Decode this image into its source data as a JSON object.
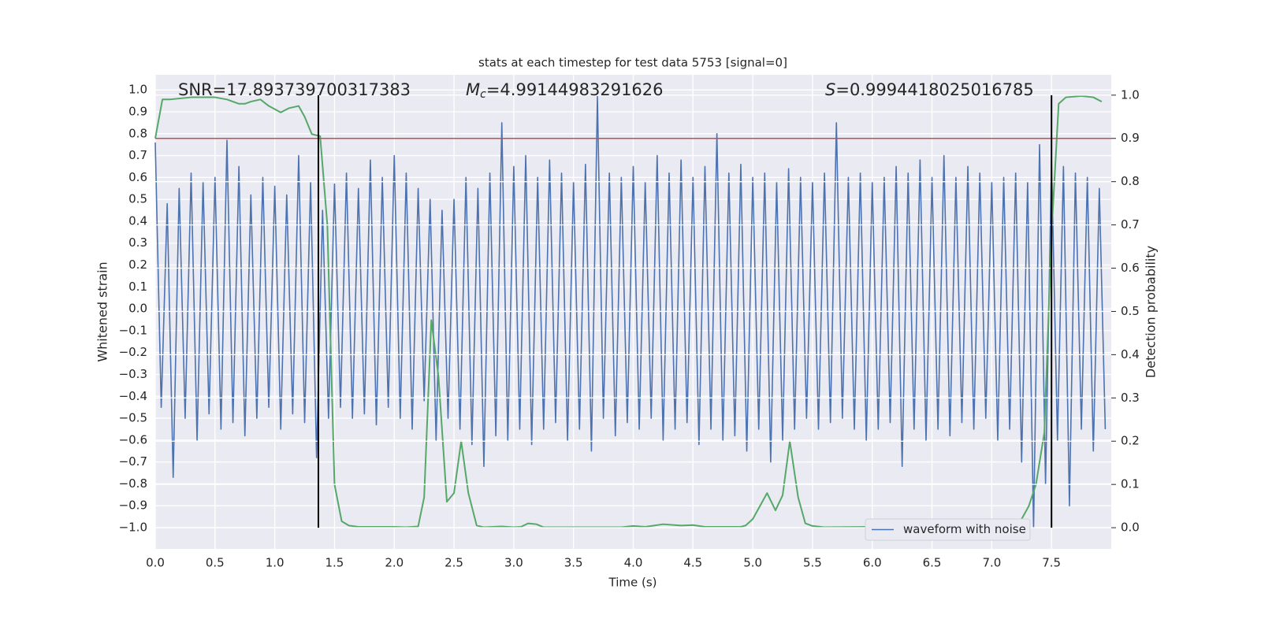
{
  "chart_data": {
    "type": "line",
    "title": "stats at each timestep for test data 5753 [signal=0]",
    "xlabel": "Time (s)",
    "ylabel": "Whitened strain",
    "y2label": "Detection probability",
    "xlim": [
      0,
      8
    ],
    "ylim": [
      -1.097,
      1.069
    ],
    "y2lim": [
      -0.049,
      1.047
    ],
    "xticks": [
      {
        "value": 0,
        "label": "0.0"
      },
      0.5,
      {
        "value": 1,
        "label": "1.0"
      },
      1.5,
      {
        "value": 2,
        "label": "2.0"
      },
      2.5,
      {
        "value": 3,
        "label": "3.0"
      },
      3.5,
      {
        "value": 4,
        "label": "4.0"
      },
      4.5,
      {
        "value": 5,
        "label": "5.0"
      },
      5.5,
      {
        "value": 6,
        "label": "6.0"
      },
      6.5,
      {
        "value": 7,
        "label": "7.0"
      },
      7.5
    ],
    "yticks": [
      {
        "value": -1,
        "label": "−1.0"
      },
      {
        "value": -0.9,
        "label": "−0.9"
      },
      {
        "value": -0.8,
        "label": "−0.8"
      },
      {
        "value": -0.7,
        "label": "−0.7"
      },
      {
        "value": -0.6,
        "label": "−0.6"
      },
      {
        "value": -0.5,
        "label": "−0.5"
      },
      {
        "value": -0.4,
        "label": "−0.4"
      },
      {
        "value": -0.3,
        "label": "−0.3"
      },
      {
        "value": -0.2,
        "label": "−0.2"
      },
      {
        "value": -0.1,
        "label": "−0.1"
      },
      {
        "value": 0,
        "label": "0.0"
      },
      0.1,
      0.2,
      0.3,
      0.4,
      0.5,
      0.6,
      0.7,
      0.8,
      0.9,
      {
        "value": 1,
        "label": "1.0"
      }
    ],
    "y2ticks": [
      {
        "value": 0,
        "label": "0.0"
      },
      0.1,
      0.2,
      0.3,
      0.4,
      0.5,
      0.6,
      0.7,
      0.8,
      0.9,
      {
        "value": 1,
        "label": "1.0"
      }
    ],
    "grid": true,
    "legend": "lower right",
    "threshold": {
      "y2": 0.9,
      "color": "#c44e52"
    },
    "vlines": {
      "x": [
        1.365,
        7.5
      ],
      "y2": [
        0,
        1
      ],
      "color": "#000000"
    },
    "annotations": [
      {
        "text": "SNR=17.893739700317383"
      },
      {
        "symbol": "M",
        "sub": "c",
        "text": "=4.99144983291626"
      },
      {
        "symbol": "S",
        "text": "=0.9994418025016785"
      }
    ],
    "series": [
      {
        "name": "waveform with noise",
        "color": "#4c72b0",
        "x": [
          0,
          0.05,
          0.1,
          0.15,
          0.2,
          0.25,
          0.3,
          0.35,
          0.4,
          0.45,
          0.5,
          0.55,
          0.6,
          0.65,
          0.7,
          0.75,
          0.8,
          0.85,
          0.9,
          0.95,
          1,
          1.05,
          1.1,
          1.15,
          1.2,
          1.25,
          1.3,
          1.35,
          1.4,
          1.45,
          1.5,
          1.55,
          1.6,
          1.65,
          1.7,
          1.75,
          1.8,
          1.85,
          1.9,
          1.95,
          2,
          2.05,
          2.1,
          2.15,
          2.2,
          2.25,
          2.3,
          2.35,
          2.4,
          2.45,
          2.5,
          2.55,
          2.6,
          2.65,
          2.7,
          2.75,
          2.8,
          2.85,
          2.9,
          2.95,
          3,
          3.05,
          3.1,
          3.15,
          3.2,
          3.25,
          3.3,
          3.35,
          3.4,
          3.45,
          3.5,
          3.55,
          3.6,
          3.65,
          3.7,
          3.75,
          3.8,
          3.85,
          3.9,
          3.95,
          4,
          4.05,
          4.1,
          4.15,
          4.2,
          4.25,
          4.3,
          4.35,
          4.4,
          4.45,
          4.5,
          4.55,
          4.6,
          4.65,
          4.7,
          4.75,
          4.8,
          4.85,
          4.9,
          4.95,
          5,
          5.05,
          5.1,
          5.15,
          5.2,
          5.25,
          5.3,
          5.35,
          5.4,
          5.45,
          5.5,
          5.55,
          5.6,
          5.65,
          5.7,
          5.75,
          5.8,
          5.85,
          5.9,
          5.95,
          6,
          6.05,
          6.1,
          6.15,
          6.2,
          6.25,
          6.3,
          6.35,
          6.4,
          6.45,
          6.5,
          6.55,
          6.6,
          6.65,
          6.7,
          6.75,
          6.8,
          6.85,
          6.9,
          6.95,
          7,
          7.05,
          7.1,
          7.15,
          7.2,
          7.25,
          7.3,
          7.35,
          7.4,
          7.45,
          7.5,
          7.55,
          7.6,
          7.65,
          7.7,
          7.75,
          7.8,
          7.85,
          7.9,
          7.95
        ],
        "values": [
          0.76,
          -0.45,
          0.48,
          -0.77,
          0.55,
          -0.5,
          0.62,
          -0.6,
          0.58,
          -0.48,
          0.6,
          -0.55,
          0.77,
          -0.52,
          0.65,
          -0.58,
          0.52,
          -0.5,
          0.6,
          -0.45,
          0.56,
          -0.55,
          0.52,
          -0.48,
          0.7,
          -0.52,
          0.58,
          -0.68,
          0.45,
          -0.5,
          0.57,
          -0.45,
          0.62,
          -0.5,
          0.55,
          -0.48,
          0.68,
          -0.53,
          0.6,
          -0.45,
          0.7,
          -0.5,
          0.62,
          -0.55,
          0.55,
          -0.42,
          0.5,
          -0.6,
          0.45,
          -0.5,
          0.5,
          -0.55,
          0.6,
          -0.62,
          0.55,
          -0.72,
          0.62,
          -0.58,
          0.85,
          -0.6,
          0.65,
          -0.55,
          0.7,
          -0.62,
          0.6,
          -0.55,
          0.68,
          -0.52,
          0.62,
          -0.6,
          0.58,
          -0.55,
          0.66,
          -0.65,
          0.97,
          -0.5,
          0.62,
          -0.58,
          0.6,
          -0.52,
          0.65,
          -0.55,
          0.58,
          -0.5,
          0.7,
          -0.6,
          0.62,
          -0.55,
          0.68,
          -0.52,
          0.6,
          -0.62,
          0.65,
          -0.55,
          0.8,
          -0.6,
          0.62,
          -0.58,
          0.66,
          -0.65,
          0.6,
          -0.55,
          0.62,
          -0.7,
          0.58,
          -0.6,
          0.64,
          -0.55,
          0.6,
          -0.5,
          0.58,
          -0.55,
          0.62,
          -0.52,
          0.85,
          -0.5,
          0.6,
          -0.55,
          0.62,
          -0.6,
          0.58,
          -0.55,
          0.6,
          -0.52,
          0.65,
          -0.72,
          0.62,
          -0.55,
          0.68,
          -0.6,
          0.6,
          -0.55,
          0.7,
          -0.58,
          0.6,
          -0.52,
          0.65,
          -0.55,
          0.62,
          -0.5,
          0.58,
          -0.6,
          0.6,
          -0.55,
          0.62,
          -0.7,
          0.58,
          -1.0,
          0.75,
          -0.8,
          0.68,
          -0.6,
          0.65,
          -0.9,
          0.62,
          -0.55,
          0.6,
          -0.65,
          0.55,
          -0.55
        ]
      },
      {
        "color": "#55a868",
        "axis": "y2",
        "x": [
          0,
          0.06,
          0.12,
          0.3,
          0.5,
          0.6,
          0.7,
          0.75,
          0.8,
          0.88,
          0.95,
          1.05,
          1.12,
          1.2,
          1.25,
          1.31,
          1.38,
          1.44,
          1.5,
          1.56,
          1.62,
          1.7,
          2.0,
          2.1,
          2.2,
          2.25,
          2.31,
          2.37,
          2.44,
          2.5,
          2.56,
          2.62,
          2.69,
          2.75,
          2.9,
          3.0,
          3.06,
          3.12,
          3.19,
          3.25,
          3.9,
          4.0,
          4.1,
          4.25,
          4.4,
          4.5,
          4.6,
          4.9,
          4.94,
          5.0,
          5.06,
          5.12,
          5.19,
          5.25,
          5.31,
          5.38,
          5.44,
          5.5,
          5.6,
          6.0,
          6.25,
          6.31,
          6.37,
          6.44,
          6.5,
          6.9,
          7.1,
          7.2,
          7.25,
          7.31,
          7.37,
          7.44,
          7.5,
          7.56,
          7.62,
          7.75,
          7.85,
          7.92
        ],
        "values": [
          0.9,
          0.99,
          0.99,
          0.995,
          0.995,
          0.99,
          0.98,
          0.98,
          0.985,
          0.99,
          0.975,
          0.96,
          0.97,
          0.975,
          0.95,
          0.91,
          0.905,
          0.7,
          0.1,
          0.015,
          0.005,
          0.002,
          0.002,
          0.001,
          0.003,
          0.07,
          0.48,
          0.35,
          0.06,
          0.08,
          0.2,
          0.08,
          0.005,
          0.001,
          0.003,
          0.001,
          0.002,
          0.01,
          0.008,
          0.001,
          0.001,
          0.004,
          0.002,
          0.008,
          0.005,
          0.006,
          0.002,
          0.002,
          0.005,
          0.02,
          0.05,
          0.08,
          0.04,
          0.075,
          0.2,
          0.07,
          0.01,
          0.004,
          0.001,
          0.002,
          0.003,
          0.015,
          0.018,
          0.006,
          0.004,
          0.002,
          0.005,
          0.01,
          0.02,
          0.05,
          0.1,
          0.22,
          0.68,
          0.98,
          0.995,
          0.998,
          0.995,
          0.985
        ]
      }
    ]
  }
}
